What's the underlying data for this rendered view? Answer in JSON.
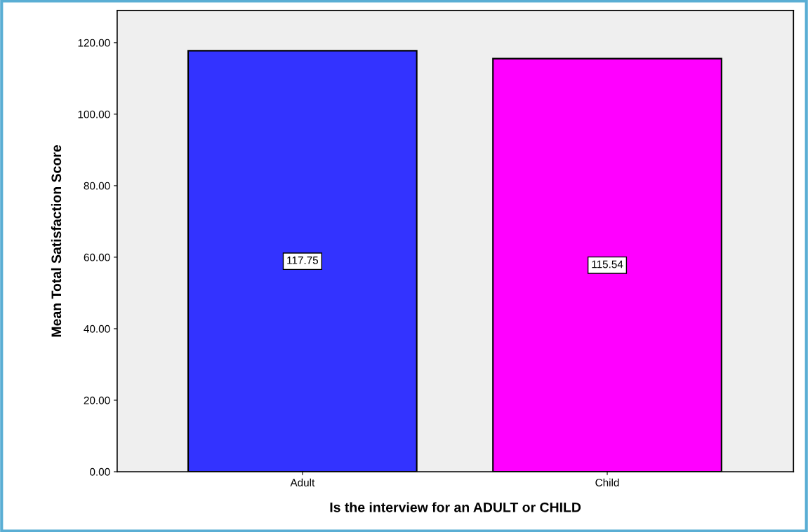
{
  "chart_data": {
    "type": "bar",
    "xlabel": "Is the interview for an ADULT or CHILD",
    "ylabel": "Mean Total Satisfaction Score",
    "categories": [
      "Adult",
      "Child"
    ],
    "values": [
      117.75,
      115.54
    ],
    "colors": [
      "#3333ff",
      "#ff00ff"
    ],
    "ylim": [
      0,
      129
    ],
    "yticks": [
      {
        "value": 0,
        "label": "0.00"
      },
      {
        "value": 20,
        "label": "20.00"
      },
      {
        "value": 40,
        "label": "40.00"
      },
      {
        "value": 60,
        "label": "60.00"
      },
      {
        "value": 80,
        "label": "80.00"
      },
      {
        "value": 100,
        "label": "100.00"
      },
      {
        "value": 120,
        "label": "120.00"
      }
    ],
    "data_labels": true,
    "grid": false,
    "legend": false
  }
}
